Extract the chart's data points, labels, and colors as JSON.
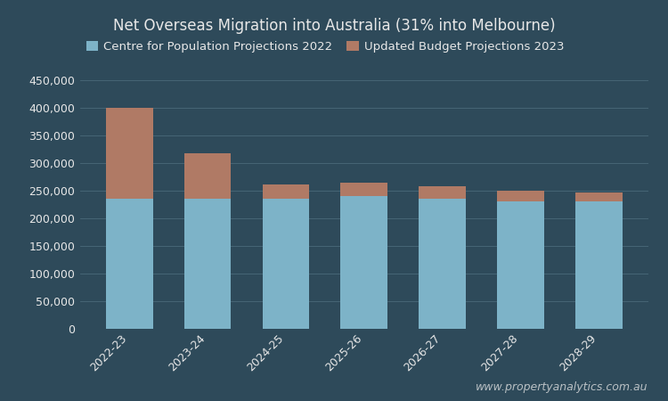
{
  "title": "Net Overseas Migration into Australia (31% into Melbourne)",
  "categories": [
    "2022-23",
    "2023-24",
    "2024-25",
    "2025-26",
    "2026-27",
    "2027-28",
    "2028-29"
  ],
  "base_values": [
    235000,
    235000,
    235000,
    240000,
    235000,
    230000,
    230000
  ],
  "top_values": [
    165000,
    82000,
    27000,
    25000,
    23000,
    20000,
    17000
  ],
  "legend_base": "Centre for Population Projections 2022",
  "legend_top": "Updated Budget Projections 2023",
  "base_color": "#7db3c8",
  "top_color": "#b07a65",
  "background_color": "#2e4a5a",
  "text_color": "#e8e8e8",
  "grid_color": "#4a6a7a",
  "ylim": [
    0,
    450000
  ],
  "yticks": [
    0,
    50000,
    100000,
    150000,
    200000,
    250000,
    300000,
    350000,
    400000,
    450000
  ],
  "watermark": "www.propertyanalytics.com.au",
  "title_fontsize": 12,
  "legend_fontsize": 9.5,
  "tick_fontsize": 9,
  "watermark_fontsize": 9
}
